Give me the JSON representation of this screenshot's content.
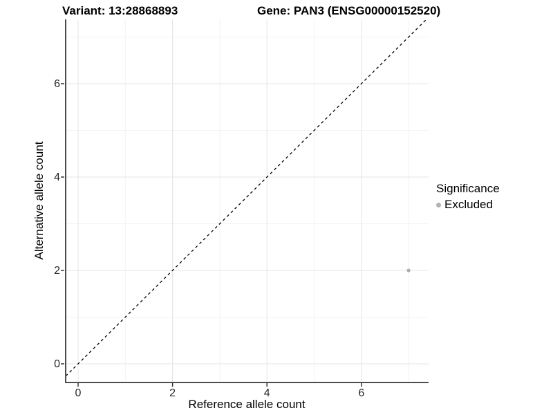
{
  "chart_data": {
    "type": "scatter",
    "titles": {
      "left": "Variant: 13:28868893",
      "right": "Gene: PAN3 (ENSG00000152520)"
    },
    "xlabel": "Reference allele count",
    "ylabel": "Alternative allele count",
    "x_axis": {
      "major_ticks": [
        0,
        2,
        4,
        6
      ],
      "minor_gridlines": [
        1,
        3,
        5,
        7
      ],
      "range": [
        -0.26,
        7.42
      ]
    },
    "y_axis": {
      "major_ticks": [
        0,
        2,
        4,
        6
      ],
      "minor_gridlines": [
        1,
        3,
        5,
        7
      ],
      "range": [
        -0.4,
        7.38
      ]
    },
    "points": [
      {
        "x": 7,
        "y": 2,
        "series": "Excluded"
      }
    ],
    "reference_line": {
      "equation": "y = x",
      "style": "dashed",
      "color": "#000000"
    },
    "legend": {
      "title": "Significance",
      "position": "right",
      "items": [
        {
          "label": "Excluded",
          "color": "#b3b3b3"
        }
      ]
    },
    "point_color": "#adadad",
    "background": "#ffffff",
    "grid_major_color": "#e4e4e4",
    "grid_minor_color": "#f3f3f3",
    "axis_line_color": "#4d4d4d",
    "tick_color": "#333333"
  }
}
